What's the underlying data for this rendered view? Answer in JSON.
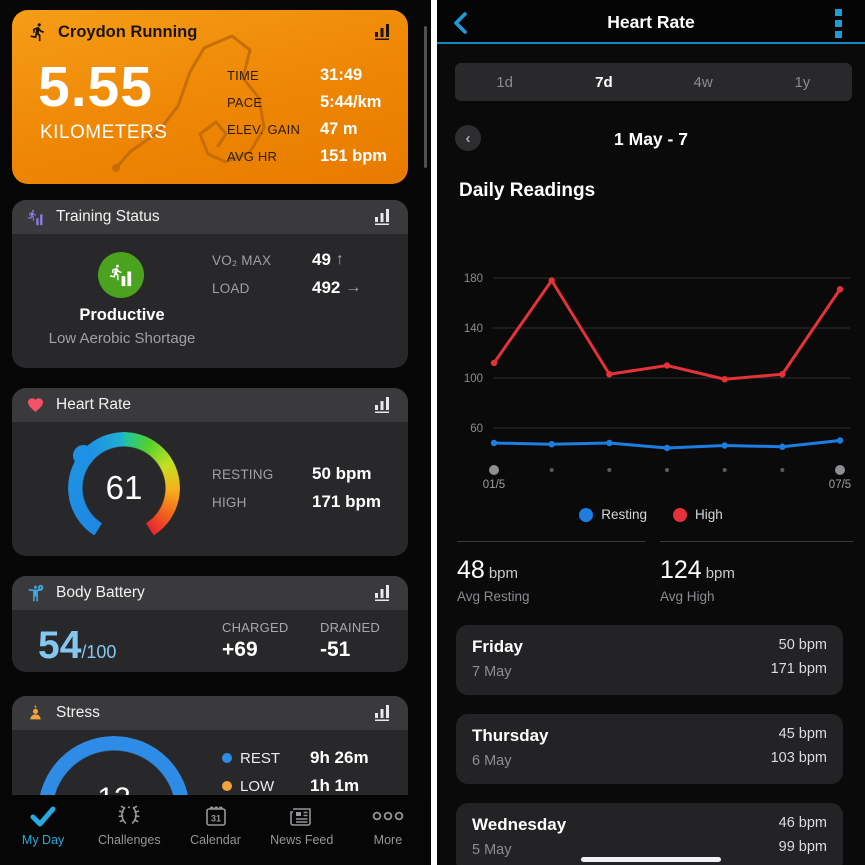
{
  "colors": {
    "accent_blue": "#1e9cd8",
    "nav_active_blue": "#28a9e1",
    "chart_blue": "#1d7de0",
    "chart_red": "#e33238",
    "rest_dot": "#2e8ce6",
    "low_dot": "#f2a23b",
    "training_green": "#4ba21e",
    "battery_blue": "#84c8ef",
    "activity_orange": "#ee8604"
  },
  "left": {
    "activity": {
      "title": "Croydon Running",
      "value": "5.55",
      "unit": "KILOMETERS",
      "stats": [
        {
          "label": "TIME",
          "value": "31:49"
        },
        {
          "label": "PACE",
          "value": "5:44/km"
        },
        {
          "label": "ELEV. GAIN",
          "value": "47 m"
        },
        {
          "label": "AVG HR",
          "value": "151 bpm"
        }
      ]
    },
    "training": {
      "title": "Training Status",
      "status": "Productive",
      "detail": "Low Aerobic Shortage",
      "stats": [
        {
          "label": "VO₂ MAX",
          "value": "49",
          "trend": "↑"
        },
        {
          "label": "LOAD",
          "value": "492",
          "trend": "→"
        }
      ]
    },
    "heart": {
      "title": "Heart Rate",
      "current": "61",
      "stats": [
        {
          "label": "RESTING",
          "value": "50 bpm"
        },
        {
          "label": "HIGH",
          "value": "171 bpm"
        }
      ]
    },
    "battery": {
      "title": "Body Battery",
      "value": "54",
      "max": "/100",
      "stats": [
        {
          "label": "CHARGED",
          "value": "+69"
        },
        {
          "label": "DRAINED",
          "value": "-51"
        }
      ]
    },
    "stress": {
      "title": "Stress",
      "value": "12",
      "stats": [
        {
          "label": "REST",
          "value": "9h 26m",
          "dot_color": "#2e8ce6"
        },
        {
          "label": "LOW",
          "value": "1h 1m",
          "dot_color": "#f2a23b"
        }
      ]
    },
    "nav": [
      {
        "label": "My Day",
        "active": true
      },
      {
        "label": "Challenges",
        "active": false
      },
      {
        "label": "Calendar",
        "active": false
      },
      {
        "label": "News Feed",
        "active": false
      },
      {
        "label": "More",
        "active": false
      }
    ]
  },
  "right": {
    "title": "Heart Rate",
    "tabs": [
      "1d",
      "7d",
      "4w",
      "1y"
    ],
    "active_tab": "7d",
    "date_range": "1 May - 7",
    "prev_arrow": "‹",
    "section": "Daily Readings",
    "legend": [
      {
        "label": "Resting",
        "color": "#1d7de0"
      },
      {
        "label": "High",
        "color": "#e33238"
      }
    ],
    "summary": [
      {
        "value": "48",
        "unit": "bpm",
        "label": "Avg Resting"
      },
      {
        "value": "124",
        "unit": "bpm",
        "label": "Avg High"
      }
    ],
    "days": [
      {
        "day": "Friday",
        "date": "7 May",
        "resting": "50 bpm",
        "high": "171 bpm"
      },
      {
        "day": "Thursday",
        "date": "6 May",
        "resting": "45 bpm",
        "high": "103 bpm"
      },
      {
        "day": "Wednesday",
        "date": "5 May",
        "resting": "46 bpm",
        "high": "99 bpm"
      }
    ]
  },
  "chart_data": {
    "type": "line",
    "title": "Daily Readings",
    "x": [
      "01/5",
      "02/5",
      "03/5",
      "04/5",
      "05/5",
      "06/5",
      "07/5"
    ],
    "x_labels_shown": [
      "01/5",
      "07/5"
    ],
    "series": [
      {
        "name": "Resting",
        "color": "#1d7de0",
        "values": [
          48,
          47,
          48,
          44,
          46,
          45,
          50
        ]
      },
      {
        "name": "High",
        "color": "#e33238",
        "values": [
          112,
          178,
          103,
          110,
          99,
          103,
          171
        ]
      }
    ],
    "ylabel": "bpm",
    "yticks": [
      60,
      100,
      140,
      180
    ],
    "ylim": [
      28,
      190
    ],
    "grid": true,
    "legend_position": "bottom"
  }
}
